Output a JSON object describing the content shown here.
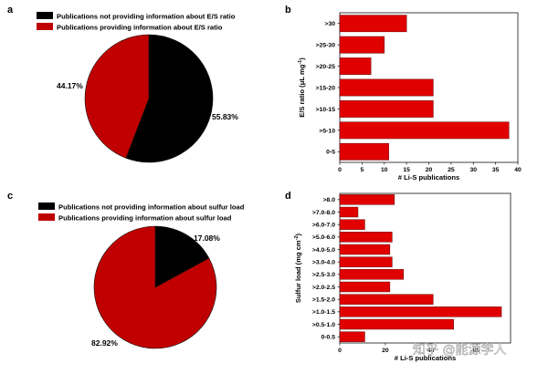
{
  "chart_data": [
    {
      "panel": "a",
      "type": "pie",
      "legend": [
        {
          "label": "Publications not providing information about E/S ratio",
          "color": "#000000"
        },
        {
          "label": "Publications providing information about E/S ratio",
          "color": "#c00000"
        }
      ],
      "slices": [
        {
          "value": 55.83,
          "label": "55.83%",
          "color": "#000000"
        },
        {
          "value": 44.17,
          "label": "44.17%",
          "color": "#c00000"
        }
      ]
    },
    {
      "panel": "b",
      "type": "bar",
      "orientation": "horizontal",
      "categories": [
        "0-5",
        ">5-10",
        ">10-15",
        ">15-20",
        ">20-25",
        ">25-30",
        ">30"
      ],
      "values": [
        11,
        38,
        21,
        21,
        7,
        10,
        15
      ],
      "xlabel": "# Li-S publications",
      "ylabel_main": "E/S ratio (μL mg",
      "ylabel_sup": "-1",
      "ylabel_end": ")",
      "xlim": [
        0,
        40
      ],
      "xticks": [
        0,
        5,
        10,
        15,
        20,
        25,
        30,
        35,
        40
      ],
      "bar_color": "#e00000"
    },
    {
      "panel": "c",
      "type": "pie",
      "legend": [
        {
          "label": "Publications not providing information about sulfur load",
          "color": "#000000"
        },
        {
          "label": "Publications providing information about sulfur load",
          "color": "#c00000"
        }
      ],
      "slices": [
        {
          "value": 17.08,
          "label": "17.08%",
          "color": "#000000"
        },
        {
          "value": 82.92,
          "label": "82.92%",
          "color": "#c00000"
        }
      ]
    },
    {
      "panel": "d",
      "type": "bar",
      "orientation": "horizontal",
      "categories": [
        "0-0.5",
        ">0.5-1.0",
        ">1.0-1.5",
        ">1.5-2.0",
        ">2.0-2.5",
        ">2.5-3.0",
        ">3.0-4.0",
        ">4.0-5.0",
        ">5.0-6.0",
        ">6.0-7.0",
        ">7.0-8.0",
        ">8.0"
      ],
      "values": [
        11,
        50,
        71,
        41,
        22,
        28,
        23,
        22,
        23,
        11,
        8,
        24
      ],
      "xlabel": "# Li-S publications",
      "ylabel_main": "Sulfur load (mg cm",
      "ylabel_sup": "-2",
      "ylabel_end": ")",
      "xlim": [
        0,
        75
      ],
      "xticks": [
        0,
        20,
        40,
        60
      ],
      "bar_color": "#e00000"
    }
  ],
  "watermark": "知乎 @能源学人"
}
